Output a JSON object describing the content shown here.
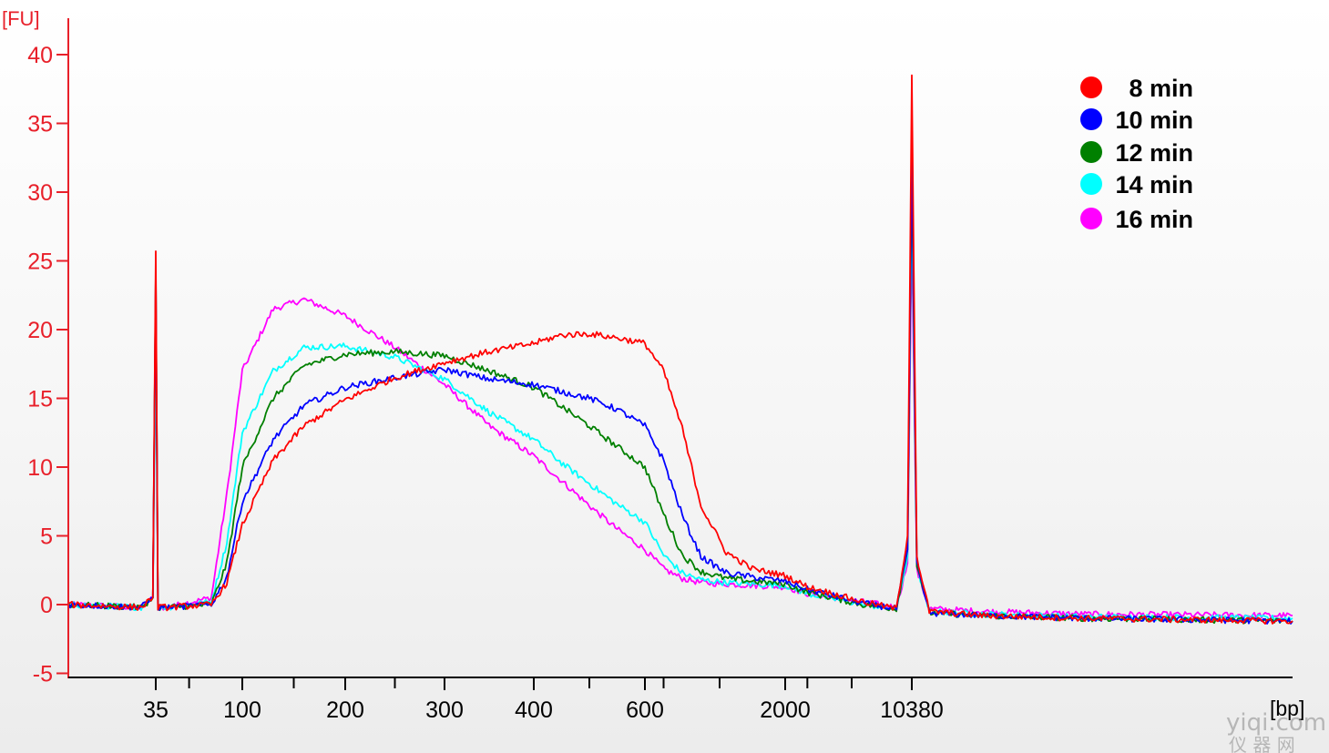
{
  "chart_data": {
    "type": "line",
    "title": "",
    "ylabel": "[FU]",
    "xlabel": "[bp]",
    "ylim": [
      -5,
      42
    ],
    "yticks": [
      "-5",
      "0",
      "5",
      "10",
      "15",
      "20",
      "25",
      "30",
      "35",
      "40"
    ],
    "x_tick_labels": [
      "35",
      "100",
      "200",
      "300",
      "400",
      "600",
      "2000",
      "10380"
    ],
    "x_scale": "nonlinear (electropherogram, size in bp)",
    "legend_position": "top-right",
    "axis_colors": {
      "y_axis": "#e8202a",
      "x_axis": "#000000"
    },
    "series": [
      {
        "name": "8 min",
        "color": "#ff0000",
        "x": [
          20,
          30,
          34,
          35,
          36,
          40,
          60,
          80,
          100,
          130,
          160,
          200,
          250,
          300,
          350,
          400,
          450,
          500,
          550,
          600,
          700,
          800,
          900,
          1100,
          1500,
          2000,
          3000,
          6000,
          9000,
          10000,
          10380,
          10700,
          11500,
          15000,
          30000,
          60000
        ],
        "y": [
          0.0,
          -0.2,
          0.5,
          25.7,
          -0.2,
          -0.2,
          0.0,
          1.6,
          5.8,
          10.5,
          13.0,
          14.9,
          16.5,
          17.6,
          18.4,
          19.0,
          19.6,
          19.7,
          19.4,
          19.0,
          17.0,
          12.8,
          7.2,
          3.8,
          2.6,
          2.1,
          1.3,
          0.2,
          -0.3,
          5.0,
          38.5,
          3.5,
          -0.5,
          -0.8,
          -1.0,
          -1.2
        ]
      },
      {
        "name": "10 min",
        "color": "#0000ff",
        "x": [
          20,
          30,
          34,
          35,
          36,
          40,
          60,
          80,
          100,
          130,
          160,
          200,
          250,
          300,
          350,
          400,
          450,
          500,
          550,
          600,
          700,
          800,
          900,
          1100,
          1500,
          2000,
          3000,
          6000,
          9000,
          10000,
          10380,
          10700,
          11500,
          15000,
          30000,
          60000
        ],
        "y": [
          0.0,
          -0.2,
          0.5,
          24.0,
          -0.2,
          -0.2,
          0.0,
          2.0,
          7.5,
          12.0,
          14.5,
          15.8,
          16.5,
          17.1,
          16.4,
          16.0,
          15.5,
          15.0,
          14.2,
          13.0,
          10.5,
          6.5,
          3.5,
          2.3,
          2.0,
          1.7,
          1.1,
          0.1,
          -0.3,
          4.0,
          33.5,
          3.0,
          -0.6,
          -0.8,
          -1.0,
          -1.2
        ]
      },
      {
        "name": "12 min",
        "color": "#008000",
        "x": [
          20,
          30,
          34,
          35,
          36,
          40,
          60,
          80,
          100,
          130,
          160,
          200,
          250,
          300,
          350,
          400,
          450,
          500,
          550,
          600,
          700,
          800,
          900,
          1100,
          1500,
          2000,
          3000,
          6000,
          9000,
          10000,
          10380,
          10700,
          11500,
          15000,
          30000,
          60000
        ],
        "y": [
          0.0,
          -0.2,
          0.5,
          24.4,
          -0.2,
          -0.2,
          0.0,
          3.0,
          10.0,
          15.0,
          17.4,
          18.2,
          18.4,
          18.1,
          17.0,
          15.8,
          14.4,
          13.0,
          11.5,
          10.0,
          6.6,
          3.6,
          2.4,
          1.9,
          1.7,
          1.5,
          0.9,
          0.0,
          -0.3,
          4.0,
          32.0,
          3.0,
          -0.6,
          -0.8,
          -1.0,
          -1.2
        ]
      },
      {
        "name": "14 min",
        "color": "#00ffff",
        "x": [
          20,
          30,
          34,
          35,
          36,
          40,
          60,
          80,
          100,
          130,
          160,
          200,
          250,
          300,
          350,
          400,
          450,
          500,
          550,
          600,
          700,
          800,
          900,
          1100,
          1500,
          2000,
          3000,
          6000,
          9000,
          10000,
          10380,
          10700,
          11500,
          15000,
          30000,
          60000
        ],
        "y": [
          0.0,
          -0.2,
          0.5,
          18.8,
          -0.2,
          -0.2,
          0.2,
          4.5,
          12.5,
          17.0,
          18.7,
          18.8,
          18.0,
          16.4,
          14.0,
          12.0,
          10.3,
          8.8,
          7.3,
          6.0,
          3.6,
          2.3,
          1.8,
          1.6,
          1.5,
          1.4,
          0.8,
          0.0,
          -0.3,
          3.5,
          30.0,
          2.8,
          -0.5,
          -0.7,
          -0.9,
          -1.0
        ]
      },
      {
        "name": "16 min",
        "color": "#ff00ff",
        "x": [
          20,
          30,
          34,
          35,
          36,
          40,
          60,
          80,
          100,
          130,
          160,
          200,
          250,
          300,
          350,
          400,
          450,
          500,
          550,
          600,
          700,
          800,
          900,
          1100,
          1500,
          2000,
          3000,
          6000,
          9000,
          10000,
          10380,
          10700,
          11500,
          15000,
          30000,
          60000
        ],
        "y": [
          0.0,
          -0.2,
          0.5,
          22.0,
          -0.2,
          -0.2,
          0.5,
          8.0,
          17.0,
          21.5,
          22.2,
          21.0,
          18.7,
          16.0,
          13.0,
          10.8,
          9.0,
          7.2,
          5.5,
          4.0,
          2.6,
          1.9,
          1.6,
          1.5,
          1.4,
          1.3,
          0.8,
          0.2,
          -0.2,
          3.0,
          27.0,
          2.5,
          -0.3,
          -0.5,
          -0.7,
          -0.8
        ]
      }
    ]
  },
  "watermark": {
    "text": "yiqi.com",
    "subtext": "仪 器 网"
  }
}
